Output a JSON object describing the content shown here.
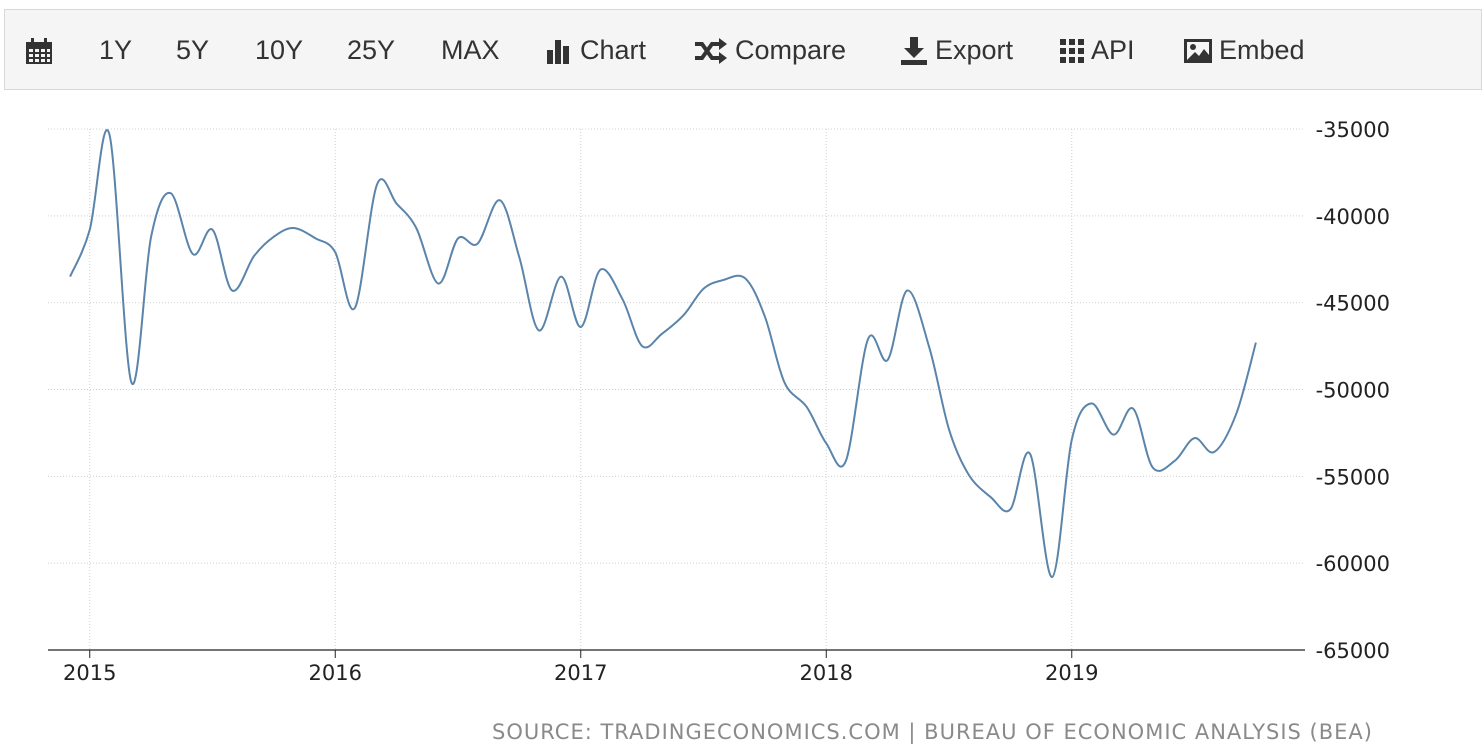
{
  "toolbar": {
    "calendar_icon": "calendar-icon",
    "ranges": [
      "1Y",
      "5Y",
      "10Y",
      "25Y",
      "MAX"
    ],
    "chart_label": "Chart",
    "compare_label": "Compare",
    "export_label": "Export",
    "api_label": "API",
    "embed_label": "Embed"
  },
  "source": "SOURCE: TRADINGECONOMICS.COM | BUREAU OF ECONOMIC ANALYSIS (BEA)",
  "colors": {
    "line": "#5b84ab",
    "grid": "#d0d0d0",
    "axis": "#222222"
  },
  "chart_data": {
    "type": "line",
    "title": "",
    "xlabel": "",
    "ylabel": "",
    "ylim": [
      -65000,
      -35000
    ],
    "yticks": [
      -35000,
      -40000,
      -45000,
      -50000,
      -55000,
      -60000,
      -65000
    ],
    "ytick_labels": [
      "-35000",
      "-40000",
      "-45000",
      "-50000",
      "-55000",
      "-60000",
      "-65000"
    ],
    "xticks": [
      2015,
      2016,
      2017,
      2018,
      2019
    ],
    "xtick_labels": [
      "2015",
      "2016",
      "2017",
      "2018",
      "2019"
    ],
    "xlim": [
      2014.83,
      2019.95
    ],
    "grid": true,
    "series": [
      {
        "x": [
          2014.92,
          2015.0,
          2015.08,
          2015.17,
          2015.25,
          2015.33,
          2015.42,
          2015.5,
          2015.58,
          2015.67,
          2015.75,
          2015.83,
          2015.92,
          2016.0,
          2016.08,
          2016.17,
          2016.25,
          2016.33,
          2016.42,
          2016.5,
          2016.58,
          2016.67,
          2016.75,
          2016.83,
          2016.92,
          2017.0,
          2017.08,
          2017.17,
          2017.25,
          2017.33,
          2017.42,
          2017.5,
          2017.58,
          2017.67,
          2017.75,
          2017.83,
          2017.92,
          2018.0,
          2018.08,
          2018.17,
          2018.25,
          2018.33,
          2018.42,
          2018.5,
          2018.58,
          2018.67,
          2018.75,
          2018.83,
          2018.92,
          2019.0,
          2019.08,
          2019.17,
          2019.25,
          2019.33,
          2019.42,
          2019.5,
          2019.58,
          2019.67,
          2019.75
        ],
        "values": [
          -43500,
          -40800,
          -35300,
          -49600,
          -41200,
          -38700,
          -42200,
          -40800,
          -44300,
          -42300,
          -41200,
          -40700,
          -41300,
          -42100,
          -45300,
          -38200,
          -39300,
          -40700,
          -43900,
          -41300,
          -41600,
          -39100,
          -42400,
          -46600,
          -43500,
          -46400,
          -43100,
          -44800,
          -47500,
          -46800,
          -45700,
          -44200,
          -43700,
          -43600,
          -45800,
          -49600,
          -51000,
          -53100,
          -54100,
          -47100,
          -48300,
          -44300,
          -47600,
          -52300,
          -54900,
          -56200,
          -56900,
          -53700,
          -60800,
          -52900,
          -50800,
          -52600,
          -51100,
          -54500,
          -54100,
          -52800,
          -53600,
          -51400,
          -47300
        ]
      }
    ]
  }
}
